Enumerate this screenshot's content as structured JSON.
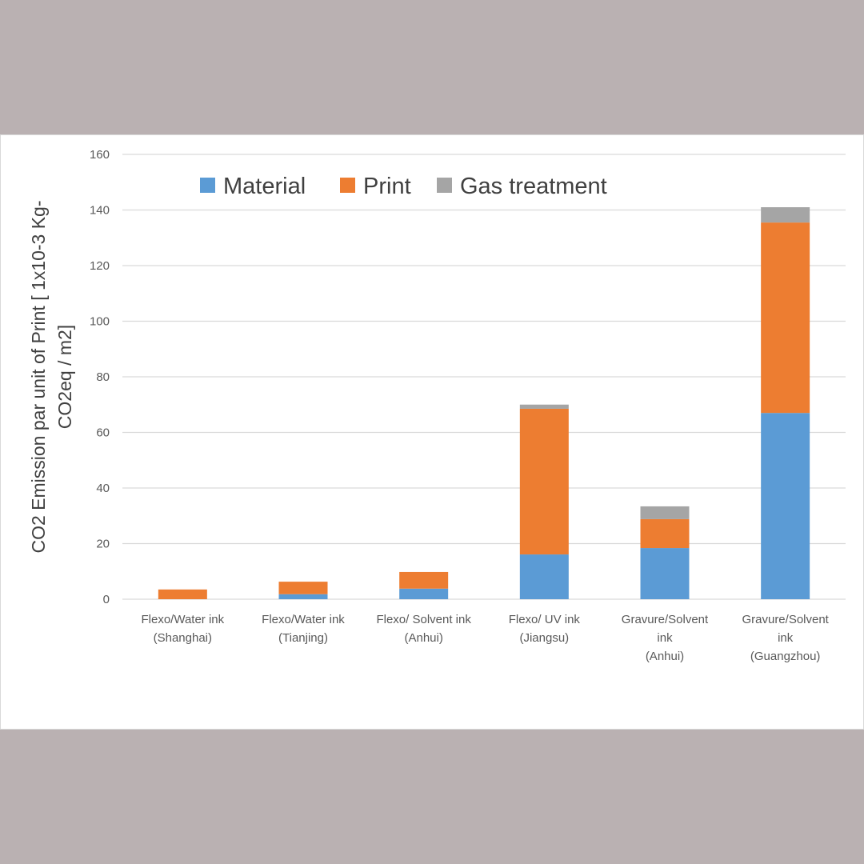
{
  "chart_data": {
    "type": "bar",
    "stacked": true,
    "title": "",
    "xlabel": "",
    "ylabel_lines": [
      "CO2 Emission par unit of Print [ 1x10-3  Kg-",
      "CO2eq / m2]"
    ],
    "ylim": [
      0,
      160
    ],
    "yticks": [
      0,
      20,
      40,
      60,
      80,
      100,
      120,
      140,
      160
    ],
    "grid": true,
    "legend_position": "top",
    "categories": [
      [
        "Flexo/Water ink",
        "(Shanghai)"
      ],
      [
        "Flexo/Water ink",
        "(Tianjing)"
      ],
      [
        "Flexo/ Solvent ink",
        "(Anhui)"
      ],
      [
        "Flexo/ UV ink",
        "(Jiangsu)"
      ],
      [
        "Gravure/Solvent",
        "ink",
        "(Anhui)"
      ],
      [
        "Gravure/Solvent",
        "ink",
        "(Guangzhou)"
      ]
    ],
    "series": [
      {
        "name": "Material",
        "color": "#5b9bd5",
        "values": [
          0,
          1.8,
          3.8,
          16.1,
          18.4,
          67
        ]
      },
      {
        "name": "Print",
        "color": "#ed7d31",
        "values": [
          3.5,
          4.5,
          6.0,
          52.4,
          10.4,
          68.5
        ]
      },
      {
        "name": "Gas treatment",
        "color": "#a5a5a5",
        "values": [
          0,
          0,
          0,
          1.5,
          4.6,
          5.5
        ]
      }
    ]
  }
}
